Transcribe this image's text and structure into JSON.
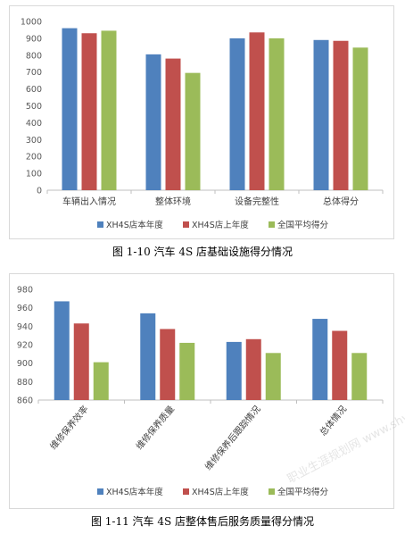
{
  "chart_data": [
    {
      "type": "bar",
      "categories": [
        "车辆出入情况",
        "整体环境",
        "设备完整性",
        "总体得分"
      ],
      "series": [
        {
          "name": "XH4S店本年度",
          "color": "#4f81bd",
          "values": [
            960,
            805,
            900,
            890
          ]
        },
        {
          "name": "XH4S店上年度",
          "color": "#c0504d",
          "values": [
            930,
            780,
            935,
            885
          ]
        },
        {
          "name": "全国平均得分",
          "color": "#9bbb59",
          "values": [
            945,
            695,
            900,
            845
          ]
        }
      ],
      "ylim": [
        0,
        1000
      ],
      "yticks": [
        0,
        100,
        200,
        300,
        400,
        500,
        600,
        700,
        800,
        900,
        1000
      ],
      "xlabel_rotated": false,
      "grid": false,
      "legend_position": "bottom",
      "caption": "图 1-10    汽车 4S 店基础设施得分情况"
    },
    {
      "type": "bar",
      "categories": [
        "维修保养效率",
        "维修保养质量",
        "维修保养后跟踪情况",
        "总体情况"
      ],
      "series": [
        {
          "name": "XH4S店本年度",
          "color": "#4f81bd",
          "values": [
            967,
            954,
            923,
            948
          ]
        },
        {
          "name": "XH4S店上年度",
          "color": "#c0504d",
          "values": [
            943,
            937,
            926,
            935
          ]
        },
        {
          "name": "全国平均得分",
          "color": "#9bbb59",
          "values": [
            901,
            922,
            911,
            911
          ]
        }
      ],
      "ylim": [
        860,
        980
      ],
      "yticks": [
        860,
        880,
        900,
        920,
        940,
        960,
        980
      ],
      "xlabel_rotated": true,
      "grid": false,
      "legend_position": "bottom",
      "caption": "图 1-11    汽车 4S 店整体售后服务质量得分情况"
    }
  ],
  "watermark": "职业生涯规划网 www.shvv.com"
}
